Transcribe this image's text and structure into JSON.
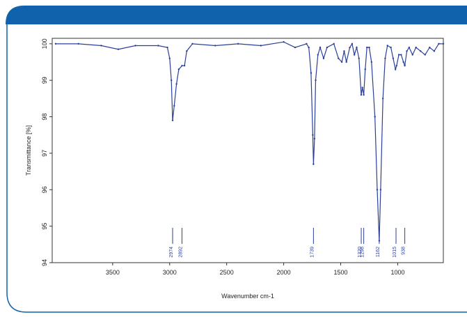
{
  "chart_data": {
    "type": "line",
    "x_label": "Wavenumber cm-1",
    "y_label": "Transmittance [%]",
    "xlim": [
      4030,
      600
    ],
    "ylim": [
      94,
      100.15
    ],
    "xticks": [
      3500,
      3000,
      2500,
      2000,
      1500,
      1000
    ],
    "yticks": [
      94,
      95,
      96,
      97,
      98,
      99,
      100
    ],
    "series": [
      {
        "color": "#2a3f99",
        "x": [
          4000,
          3800,
          3600,
          3450,
          3300,
          3100,
          3020,
          3000,
          2985,
          2974,
          2960,
          2940,
          2920,
          2892,
          2870,
          2850,
          2800,
          2600,
          2400,
          2200,
          2000,
          1900,
          1800,
          1780,
          1760,
          1745,
          1739,
          1730,
          1720,
          1700,
          1680,
          1650,
          1620,
          1560,
          1520,
          1490,
          1470,
          1450,
          1420,
          1400,
          1380,
          1360,
          1340,
          1320,
          1310,
          1298,
          1285,
          1270,
          1250,
          1230,
          1200,
          1180,
          1162,
          1150,
          1130,
          1110,
          1090,
          1060,
          1040,
          1020,
          1010,
          990,
          970,
          950,
          938,
          920,
          900,
          870,
          840,
          800,
          760,
          720,
          680,
          640,
          600
        ],
        "values": [
          100.0,
          100.0,
          99.95,
          99.85,
          99.95,
          99.95,
          99.9,
          99.6,
          99.0,
          97.9,
          98.3,
          98.9,
          99.3,
          99.4,
          99.4,
          99.8,
          100.0,
          99.95,
          100.0,
          99.95,
          100.05,
          99.9,
          100.0,
          99.9,
          99.2,
          97.5,
          96.7,
          97.4,
          99.0,
          99.7,
          99.9,
          99.6,
          99.9,
          100.0,
          99.6,
          99.5,
          99.8,
          99.5,
          99.9,
          100.0,
          99.7,
          99.9,
          99.6,
          98.6,
          98.8,
          98.6,
          99.3,
          99.9,
          99.9,
          99.5,
          98.0,
          96.0,
          94.6,
          96.0,
          98.5,
          99.6,
          99.95,
          99.9,
          99.6,
          99.3,
          99.4,
          99.7,
          99.7,
          99.5,
          99.4,
          99.8,
          99.9,
          99.7,
          99.9,
          99.8,
          99.7,
          99.9,
          99.8,
          100.0,
          100.0
        ]
      }
    ],
    "peaks": [
      2974,
      2892,
      1739,
      1320,
      1298,
      1162,
      1015,
      938
    ]
  }
}
